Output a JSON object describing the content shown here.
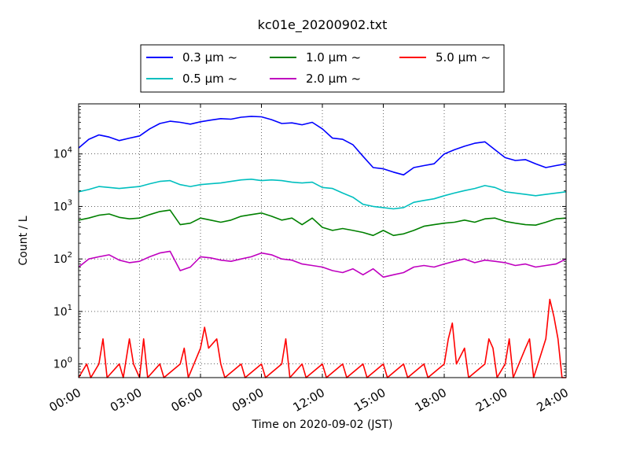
{
  "chart_data": {
    "type": "line",
    "title": "kc01e_20200902.txt",
    "xlabel": "Time on 2020-09-02 (JST)",
    "ylabel": "Count / L",
    "x_unit": "hours",
    "xlim": [
      0,
      24
    ],
    "ylim": [
      0.55,
      90000
    ],
    "yscale": "log",
    "grid": true,
    "legend_position": "top-center",
    "x_ticks": [
      0,
      3,
      6,
      9,
      12,
      15,
      18,
      21,
      24
    ],
    "x_tick_labels": [
      "00:00",
      "03:00",
      "06:00",
      "09:00",
      "12:00",
      "15:00",
      "18:00",
      "21:00",
      "24:00"
    ],
    "y_ticks": [
      1,
      10,
      100,
      1000,
      10000
    ],
    "y_tick_labels": [
      {
        "base": "10",
        "exp": "0"
      },
      {
        "base": "10",
        "exp": "1"
      },
      {
        "base": "10",
        "exp": "2"
      },
      {
        "base": "10",
        "exp": "3"
      },
      {
        "base": "10",
        "exp": "4"
      }
    ],
    "series": [
      {
        "name": "0.3 µm ~",
        "color": "#0000ff",
        "points": [
          [
            0,
            13000
          ],
          [
            0.5,
            19000
          ],
          [
            1,
            23000
          ],
          [
            1.5,
            21000
          ],
          [
            2,
            18000
          ],
          [
            2.5,
            20000
          ],
          [
            3,
            22000
          ],
          [
            3.5,
            30000
          ],
          [
            4,
            38000
          ],
          [
            4.5,
            42000
          ],
          [
            5,
            40000
          ],
          [
            5.5,
            37000
          ],
          [
            6,
            41000
          ],
          [
            6.5,
            44000
          ],
          [
            7,
            47000
          ],
          [
            7.5,
            46000
          ],
          [
            8,
            50000
          ],
          [
            8.5,
            52000
          ],
          [
            9,
            51000
          ],
          [
            9.5,
            45000
          ],
          [
            10,
            38000
          ],
          [
            10.5,
            39000
          ],
          [
            11,
            36000
          ],
          [
            11.5,
            40000
          ],
          [
            12,
            30000
          ],
          [
            12.5,
            20000
          ],
          [
            13,
            19000
          ],
          [
            13.5,
            15000
          ],
          [
            14,
            9000
          ],
          [
            14.5,
            5500
          ],
          [
            15,
            5200
          ],
          [
            15.5,
            4500
          ],
          [
            16,
            4000
          ],
          [
            16.5,
            5500
          ],
          [
            17,
            6000
          ],
          [
            17.5,
            6500
          ],
          [
            18,
            10000
          ],
          [
            18.5,
            12000
          ],
          [
            19,
            14000
          ],
          [
            19.5,
            16000
          ],
          [
            20,
            17000
          ],
          [
            20.5,
            12000
          ],
          [
            21,
            8500
          ],
          [
            21.5,
            7500
          ],
          [
            22,
            7800
          ],
          [
            22.5,
            6500
          ],
          [
            23,
            5500
          ],
          [
            23.5,
            6000
          ],
          [
            24,
            6500
          ]
        ]
      },
      {
        "name": "0.5 µm ~",
        "color": "#00bfbf",
        "points": [
          [
            0,
            1900
          ],
          [
            0.5,
            2100
          ],
          [
            1,
            2400
          ],
          [
            1.5,
            2300
          ],
          [
            2,
            2200
          ],
          [
            2.5,
            2300
          ],
          [
            3,
            2400
          ],
          [
            3.5,
            2700
          ],
          [
            4,
            3000
          ],
          [
            4.5,
            3100
          ],
          [
            5,
            2600
          ],
          [
            5.5,
            2400
          ],
          [
            6,
            2600
          ],
          [
            6.5,
            2700
          ],
          [
            7,
            2800
          ],
          [
            7.5,
            3000
          ],
          [
            8,
            3200
          ],
          [
            8.5,
            3300
          ],
          [
            9,
            3100
          ],
          [
            9.5,
            3200
          ],
          [
            10,
            3100
          ],
          [
            10.5,
            2900
          ],
          [
            11,
            2800
          ],
          [
            11.5,
            2900
          ],
          [
            12,
            2300
          ],
          [
            12.5,
            2200
          ],
          [
            13,
            1800
          ],
          [
            13.5,
            1500
          ],
          [
            14,
            1100
          ],
          [
            14.5,
            1000
          ],
          [
            15,
            950
          ],
          [
            15.5,
            900
          ],
          [
            16,
            950
          ],
          [
            16.5,
            1200
          ],
          [
            17,
            1300
          ],
          [
            17.5,
            1400
          ],
          [
            18,
            1600
          ],
          [
            18.5,
            1800
          ],
          [
            19,
            2000
          ],
          [
            19.5,
            2200
          ],
          [
            20,
            2500
          ],
          [
            20.5,
            2300
          ],
          [
            21,
            1900
          ],
          [
            21.5,
            1800
          ],
          [
            22,
            1700
          ],
          [
            22.5,
            1600
          ],
          [
            23,
            1700
          ],
          [
            23.5,
            1800
          ],
          [
            24,
            1900
          ]
        ]
      },
      {
        "name": "1.0 µm ~",
        "color": "#008000",
        "points": [
          [
            0,
            550
          ],
          [
            0.5,
            600
          ],
          [
            1,
            680
          ],
          [
            1.5,
            720
          ],
          [
            2,
            620
          ],
          [
            2.5,
            580
          ],
          [
            3,
            600
          ],
          [
            3.5,
            700
          ],
          [
            4,
            800
          ],
          [
            4.5,
            850
          ],
          [
            5,
            450
          ],
          [
            5.5,
            480
          ],
          [
            6,
            600
          ],
          [
            6.5,
            550
          ],
          [
            7,
            500
          ],
          [
            7.5,
            550
          ],
          [
            8,
            650
          ],
          [
            8.5,
            700
          ],
          [
            9,
            750
          ],
          [
            9.5,
            650
          ],
          [
            10,
            550
          ],
          [
            10.5,
            600
          ],
          [
            11,
            450
          ],
          [
            11.5,
            600
          ],
          [
            12,
            400
          ],
          [
            12.5,
            350
          ],
          [
            13,
            380
          ],
          [
            13.5,
            350
          ],
          [
            14,
            320
          ],
          [
            14.5,
            280
          ],
          [
            15,
            350
          ],
          [
            15.5,
            280
          ],
          [
            16,
            300
          ],
          [
            16.5,
            350
          ],
          [
            17,
            420
          ],
          [
            17.5,
            450
          ],
          [
            18,
            480
          ],
          [
            18.5,
            500
          ],
          [
            19,
            550
          ],
          [
            19.5,
            500
          ],
          [
            20,
            580
          ],
          [
            20.5,
            600
          ],
          [
            21,
            520
          ],
          [
            21.5,
            480
          ],
          [
            22,
            450
          ],
          [
            22.5,
            440
          ],
          [
            23,
            500
          ],
          [
            23.5,
            580
          ],
          [
            24,
            600
          ]
        ]
      },
      {
        "name": "2.0 µm ~",
        "color": "#bf00bf",
        "points": [
          [
            0,
            70
          ],
          [
            0.5,
            100
          ],
          [
            1,
            110
          ],
          [
            1.5,
            120
          ],
          [
            2,
            95
          ],
          [
            2.5,
            85
          ],
          [
            3,
            90
          ],
          [
            3.5,
            110
          ],
          [
            4,
            130
          ],
          [
            4.5,
            140
          ],
          [
            5,
            60
          ],
          [
            5.5,
            70
          ],
          [
            6,
            110
          ],
          [
            6.5,
            105
          ],
          [
            7,
            95
          ],
          [
            7.5,
            90
          ],
          [
            8,
            100
          ],
          [
            8.5,
            110
          ],
          [
            9,
            130
          ],
          [
            9.5,
            120
          ],
          [
            10,
            100
          ],
          [
            10.5,
            95
          ],
          [
            11,
            80
          ],
          [
            11.5,
            75
          ],
          [
            12,
            70
          ],
          [
            12.5,
            60
          ],
          [
            13,
            55
          ],
          [
            13.5,
            65
          ],
          [
            14,
            50
          ],
          [
            14.5,
            65
          ],
          [
            15,
            45
          ],
          [
            15.5,
            50
          ],
          [
            16,
            55
          ],
          [
            16.5,
            70
          ],
          [
            17,
            75
          ],
          [
            17.5,
            70
          ],
          [
            18,
            80
          ],
          [
            18.5,
            90
          ],
          [
            19,
            100
          ],
          [
            19.5,
            85
          ],
          [
            20,
            95
          ],
          [
            20.5,
            90
          ],
          [
            21,
            85
          ],
          [
            21.5,
            75
          ],
          [
            22,
            80
          ],
          [
            22.5,
            70
          ],
          [
            23,
            75
          ],
          [
            23.5,
            80
          ],
          [
            24,
            100
          ]
        ]
      },
      {
        "name": "5.0 µm ~",
        "color": "#ff0000",
        "points": [
          [
            0,
            0.55
          ],
          [
            0.4,
            1
          ],
          [
            0.6,
            0.55
          ],
          [
            1,
            1
          ],
          [
            1.2,
            3
          ],
          [
            1.4,
            0.55
          ],
          [
            2,
            1
          ],
          [
            2.2,
            0.55
          ],
          [
            2.5,
            3
          ],
          [
            2.7,
            1
          ],
          [
            3,
            0.55
          ],
          [
            3.2,
            3
          ],
          [
            3.4,
            0.55
          ],
          [
            4,
            1
          ],
          [
            4.2,
            0.55
          ],
          [
            5,
            1
          ],
          [
            5.2,
            2
          ],
          [
            5.4,
            0.55
          ],
          [
            6,
            2
          ],
          [
            6.2,
            5
          ],
          [
            6.4,
            2
          ],
          [
            6.8,
            3
          ],
          [
            7,
            1
          ],
          [
            7.2,
            0.55
          ],
          [
            8,
            1
          ],
          [
            8.2,
            0.55
          ],
          [
            9,
            1
          ],
          [
            9.2,
            0.55
          ],
          [
            10,
            1
          ],
          [
            10.2,
            3
          ],
          [
            10.4,
            0.55
          ],
          [
            11,
            1
          ],
          [
            11.2,
            0.55
          ],
          [
            12,
            1
          ],
          [
            12.2,
            0.55
          ],
          [
            13,
            1
          ],
          [
            13.2,
            0.55
          ],
          [
            14,
            1
          ],
          [
            14.2,
            0.55
          ],
          [
            15,
            1
          ],
          [
            15.2,
            0.55
          ],
          [
            16,
            1
          ],
          [
            16.2,
            0.55
          ],
          [
            17,
            1
          ],
          [
            17.2,
            0.55
          ],
          [
            18,
            1
          ],
          [
            18.2,
            3
          ],
          [
            18.4,
            6
          ],
          [
            18.6,
            1
          ],
          [
            19,
            2
          ],
          [
            19.2,
            0.55
          ],
          [
            20,
            1
          ],
          [
            20.2,
            3
          ],
          [
            20.4,
            2
          ],
          [
            20.6,
            0.55
          ],
          [
            21,
            1
          ],
          [
            21.2,
            3
          ],
          [
            21.4,
            0.55
          ],
          [
            22,
            2
          ],
          [
            22.2,
            3
          ],
          [
            22.4,
            0.55
          ],
          [
            23,
            3
          ],
          [
            23.2,
            17
          ],
          [
            23.4,
            8
          ],
          [
            23.6,
            3
          ],
          [
            23.8,
            0.55
          ],
          [
            24,
            0.55
          ]
        ]
      }
    ]
  }
}
